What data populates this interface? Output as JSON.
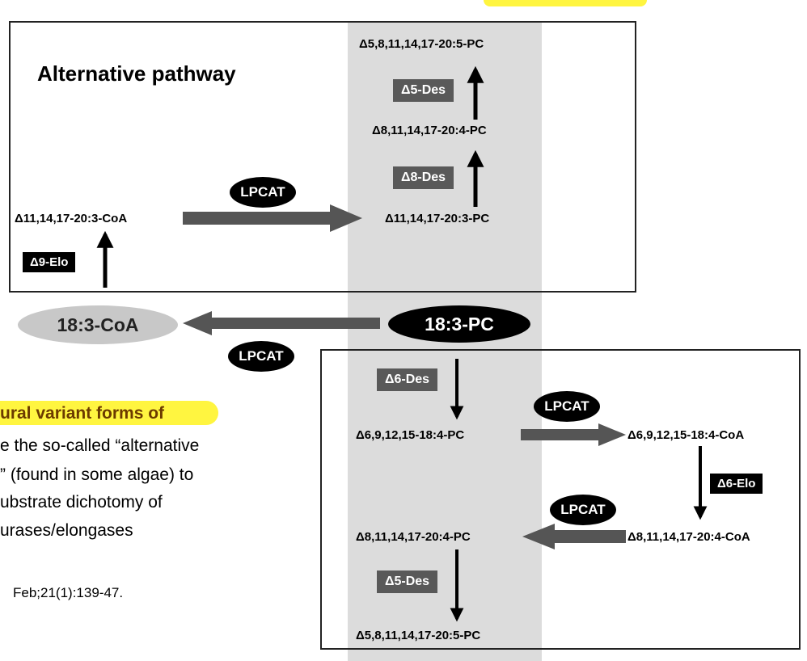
{
  "alt_title": "Alternative pathway",
  "nodes": {
    "alt_top": "Δ5,8,11,14,17-20:5-PC",
    "alt_mid": "Δ8,11,14,17-20:4-PC",
    "alt_low": "Δ11,14,17-20:3-PC",
    "alt_coa": "Δ11,14,17-20:3-CoA",
    "coa_18_3": "18:3-CoA",
    "pc_18_3": "18:3-PC",
    "pc_18_4": "Δ6,9,12,15-18:4-PC",
    "coa_18_4": "Δ6,9,12,15-18:4-CoA",
    "coa_20_4": "Δ8,11,14,17-20:4-CoA",
    "pc_20_4": "Δ8,11,14,17-20:4-PC",
    "pc_20_5": "Δ5,8,11,14,17-20:5-PC"
  },
  "enzymes": {
    "d5_des_alt": "Δ5-Des",
    "d8_des": "Δ8-Des",
    "d9_elo": "Δ9-Elo",
    "lpcat_alt": "LPCAT",
    "lpcat_mid": "LPCAT",
    "d6_des": "Δ6-Des",
    "lpcat_conv1": "LPCAT",
    "d6_elo": "Δ6-Elo",
    "lpcat_conv2": "LPCAT",
    "d5_des_conv": "Δ5-Des"
  },
  "side_text": {
    "line1": "ural variant forms of",
    "line2": "e the so-called “alternative",
    "line3": "” (found in some algae) to",
    "line4": "ubstrate dichotomy of",
    "line5": "urases/elongases",
    "reference": "Feb;21(1):139-47."
  },
  "colors": {
    "highlight": "#fff200",
    "arrow_grey": "#555555",
    "band_grey": "#dcdcdc",
    "ellipse_grey": "#c8c8c8"
  }
}
